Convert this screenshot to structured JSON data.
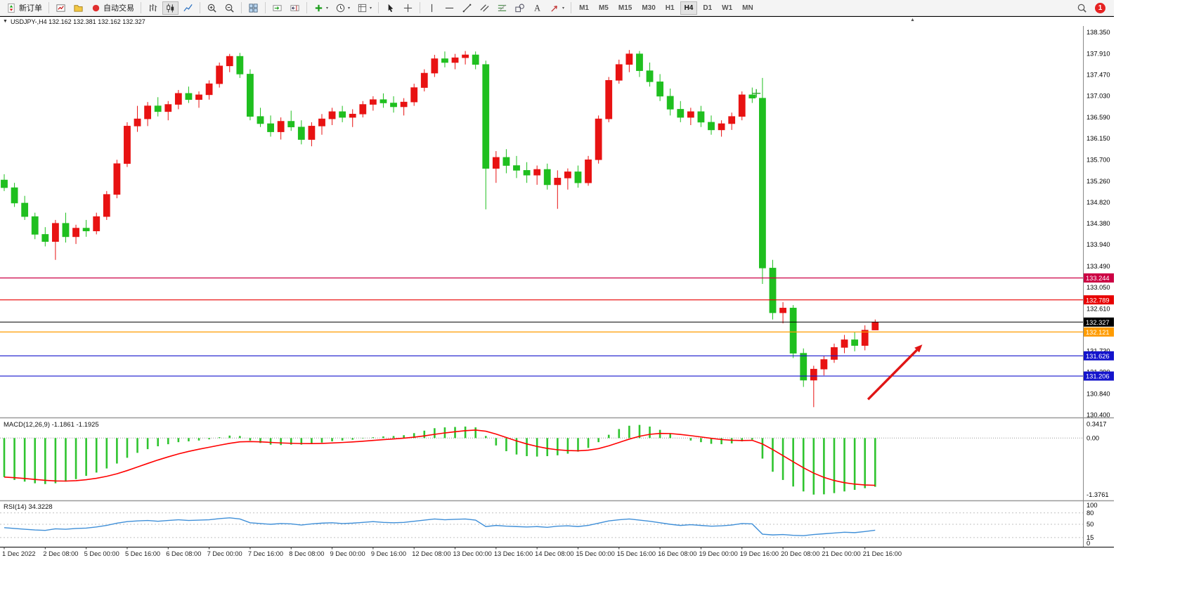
{
  "toolbar": {
    "new_order_label": "新订单",
    "autotrading_label": "自动交易",
    "buttons": [
      {
        "name": "new-order-button",
        "icon": "new-order-icon",
        "label": "新订单"
      },
      {
        "sep": true
      },
      {
        "name": "new-chart-button",
        "icon": "new-chart-icon"
      },
      {
        "name": "profiles-button",
        "icon": "profiles-icon"
      },
      {
        "name": "autotrading-button",
        "icon": "autotrading-icon",
        "label": "自动交易"
      },
      {
        "sep": true
      },
      {
        "name": "bar-chart-button",
        "icon": "bar-chart-icon"
      },
      {
        "name": "candlestick-chart-button",
        "icon": "candlestick-icon",
        "active": true
      },
      {
        "name": "line-chart-button",
        "icon": "line-chart-icon"
      },
      {
        "sep": true
      },
      {
        "name": "zoom-in-button",
        "icon": "zoom-in-icon"
      },
      {
        "name": "zoom-out-button",
        "icon": "zoom-out-icon"
      },
      {
        "sep": true
      },
      {
        "name": "tile-windows-button",
        "icon": "tile-windows-icon"
      },
      {
        "sep": true
      },
      {
        "name": "auto-scroll-button",
        "icon": "auto-scroll-icon"
      },
      {
        "name": "chart-shift-button",
        "icon": "chart-shift-icon"
      },
      {
        "sep": true
      },
      {
        "name": "indicators-button",
        "icon": "indicators-plus-icon",
        "caret": true
      },
      {
        "name": "periods-button",
        "icon": "clock-icon",
        "caret": true
      },
      {
        "name": "templates-button",
        "icon": "template-icon",
        "caret": true
      },
      {
        "sep": true
      },
      {
        "name": "cursor-button",
        "icon": "cursor-icon"
      },
      {
        "name": "crosshair-button",
        "icon": "crosshair-icon"
      },
      {
        "sep": true
      },
      {
        "name": "vertical-line-button",
        "icon": "vertical-line-icon"
      },
      {
        "name": "horizontal-line-button",
        "icon": "horizontal-line-icon"
      },
      {
        "name": "trendline-button",
        "icon": "trendline-icon"
      },
      {
        "name": "channel-button",
        "icon": "channel-icon"
      },
      {
        "name": "fibonacci-button",
        "icon": "fibonacci-icon"
      },
      {
        "name": "shapes-button",
        "icon": "shapes-icon"
      },
      {
        "name": "text-button",
        "icon": "text-icon"
      },
      {
        "name": "arrows-button",
        "icon": "arrow-style-icon",
        "caret": true
      },
      {
        "sep": true
      }
    ],
    "timeframes": [
      "M1",
      "M5",
      "M15",
      "M30",
      "H1",
      "H4",
      "D1",
      "W1",
      "MN"
    ],
    "active_timeframe": "H4",
    "notification_count": "1"
  },
  "chart": {
    "symbol": "USDJPY-",
    "period": "H4",
    "open": "132.162",
    "high": "132.381",
    "low": "132.162",
    "close": "132.327",
    "title": "USDJPY-,H4  132.162 132.381 132.162 132.327"
  },
  "chart_data": {
    "type": "candlestick",
    "symbol": "USDJPY-",
    "timeframe": "H4",
    "bull_color": "#e81212",
    "bear_color": "#1fbf1f",
    "ohlc": [
      [
        135.28,
        135.4,
        135.05,
        135.12
      ],
      [
        135.12,
        135.22,
        134.72,
        134.8
      ],
      [
        134.8,
        134.95,
        134.45,
        134.52
      ],
      [
        134.52,
        134.6,
        134.05,
        134.15
      ],
      [
        134.15,
        134.3,
        133.9,
        134.0
      ],
      [
        134.0,
        134.45,
        133.62,
        134.38
      ],
      [
        134.38,
        134.6,
        133.98,
        134.1
      ],
      [
        134.1,
        134.35,
        133.95,
        134.28
      ],
      [
        134.28,
        134.45,
        134.1,
        134.22
      ],
      [
        134.22,
        134.6,
        134.15,
        134.52
      ],
      [
        134.52,
        135.05,
        134.45,
        134.98
      ],
      [
        134.98,
        135.7,
        134.9,
        135.62
      ],
      [
        135.62,
        136.48,
        135.55,
        136.4
      ],
      [
        136.4,
        136.82,
        136.28,
        136.55
      ],
      [
        136.55,
        136.9,
        136.4,
        136.82
      ],
      [
        136.82,
        137.0,
        136.6,
        136.7
      ],
      [
        136.7,
        136.92,
        136.52,
        136.85
      ],
      [
        136.85,
        137.15,
        136.75,
        137.08
      ],
      [
        137.08,
        137.22,
        136.88,
        136.95
      ],
      [
        136.95,
        137.12,
        136.78,
        137.05
      ],
      [
        137.05,
        137.35,
        136.95,
        137.28
      ],
      [
        137.28,
        137.72,
        137.2,
        137.65
      ],
      [
        137.65,
        137.9,
        137.52,
        137.85
      ],
      [
        137.85,
        137.92,
        137.4,
        137.48
      ],
      [
        137.48,
        137.58,
        136.52,
        136.6
      ],
      [
        136.6,
        136.78,
        136.38,
        136.45
      ],
      [
        136.45,
        136.62,
        136.18,
        136.28
      ],
      [
        136.28,
        136.58,
        136.12,
        136.5
      ],
      [
        136.5,
        136.72,
        136.3,
        136.38
      ],
      [
        136.38,
        136.52,
        136.02,
        136.12
      ],
      [
        136.12,
        136.48,
        135.98,
        136.4
      ],
      [
        136.4,
        136.65,
        136.22,
        136.55
      ],
      [
        136.55,
        136.78,
        136.42,
        136.7
      ],
      [
        136.7,
        136.82,
        136.48,
        136.58
      ],
      [
        136.58,
        136.75,
        136.38,
        136.65
      ],
      [
        136.65,
        136.92,
        136.58,
        136.85
      ],
      [
        136.85,
        137.02,
        136.72,
        136.95
      ],
      [
        136.95,
        137.08,
        136.78,
        136.88
      ],
      [
        136.88,
        137.02,
        136.68,
        136.8
      ],
      [
        136.8,
        136.98,
        136.62,
        136.9
      ],
      [
        136.9,
        137.28,
        136.82,
        137.2
      ],
      [
        137.2,
        137.58,
        137.12,
        137.5
      ],
      [
        137.5,
        137.88,
        137.42,
        137.8
      ],
      [
        137.8,
        137.95,
        137.62,
        137.72
      ],
      [
        137.72,
        137.9,
        137.58,
        137.82
      ],
      [
        137.82,
        137.96,
        137.68,
        137.88
      ],
      [
        137.88,
        137.95,
        137.58,
        137.68
      ],
      [
        137.68,
        137.76,
        134.67,
        135.52
      ],
      [
        135.52,
        135.88,
        135.22,
        135.75
      ],
      [
        135.75,
        135.92,
        135.42,
        135.58
      ],
      [
        135.58,
        135.78,
        135.32,
        135.48
      ],
      [
        135.48,
        135.65,
        135.22,
        135.38
      ],
      [
        135.38,
        135.58,
        135.18,
        135.5
      ],
      [
        135.5,
        135.62,
        135.08,
        135.18
      ],
      [
        135.18,
        135.48,
        134.68,
        135.32
      ],
      [
        135.32,
        135.52,
        135.08,
        135.45
      ],
      [
        135.45,
        135.58,
        135.12,
        135.22
      ],
      [
        135.22,
        135.78,
        135.16,
        135.7
      ],
      [
        135.7,
        136.62,
        135.62,
        136.55
      ],
      [
        136.55,
        137.42,
        136.48,
        137.35
      ],
      [
        137.35,
        137.78,
        137.28,
        137.68
      ],
      [
        137.68,
        137.98,
        137.52,
        137.9
      ],
      [
        137.9,
        137.96,
        137.42,
        137.55
      ],
      [
        137.55,
        137.72,
        137.22,
        137.32
      ],
      [
        137.32,
        137.48,
        136.92,
        137.02
      ],
      [
        137.02,
        137.18,
        136.62,
        136.75
      ],
      [
        136.75,
        136.92,
        136.48,
        136.58
      ],
      [
        136.58,
        136.78,
        136.42,
        136.7
      ],
      [
        136.7,
        136.82,
        136.38,
        136.48
      ],
      [
        136.48,
        136.62,
        136.22,
        136.32
      ],
      [
        136.32,
        136.52,
        136.18,
        136.45
      ],
      [
        136.45,
        136.68,
        136.32,
        136.6
      ],
      [
        136.6,
        137.12,
        136.52,
        137.05
      ],
      [
        137.05,
        137.2,
        136.88,
        136.98
      ],
      [
        136.98,
        137.4,
        133.12,
        133.45
      ],
      [
        133.45,
        133.62,
        132.38,
        132.52
      ],
      [
        132.52,
        132.74,
        132.3,
        132.62
      ],
      [
        132.62,
        132.68,
        131.58,
        131.68
      ],
      [
        131.68,
        131.78,
        130.98,
        131.12
      ],
      [
        131.12,
        131.42,
        130.56,
        131.35
      ],
      [
        131.35,
        131.62,
        131.22,
        131.55
      ],
      [
        131.55,
        131.88,
        131.48,
        131.8
      ],
      [
        131.8,
        132.06,
        131.68,
        131.96
      ],
      [
        131.96,
        132.12,
        131.72,
        131.84
      ],
      [
        131.84,
        132.26,
        131.74,
        132.16
      ],
      [
        132.162,
        132.381,
        132.162,
        132.327
      ]
    ],
    "time_labels": [
      "1 Dec 2022",
      "2 Dec 08:00",
      "5 Dec 00:00",
      "5 Dec 16:00",
      "6 Dec 08:00",
      "7 Dec 00:00",
      "7 Dec 16:00",
      "8 Dec 08:00",
      "9 Dec 00:00",
      "9 Dec 16:00",
      "12 Dec 08:00",
      "13 Dec 00:00",
      "13 Dec 16:00",
      "14 Dec 08:00",
      "15 Dec 00:00",
      "15 Dec 16:00",
      "16 Dec 08:00",
      "19 Dec 00:00",
      "19 Dec 16:00",
      "20 Dec 08:00",
      "21 Dec 00:00",
      "21 Dec 16:00"
    ],
    "time_label_first_bar": 0,
    "time_label_step": 4,
    "price_axis": {
      "min": 130.36,
      "max": 138.45,
      "ticks": [
        "138.350",
        "137.910",
        "137.470",
        "137.030",
        "136.590",
        "136.150",
        "135.700",
        "135.260",
        "134.820",
        "134.380",
        "133.940",
        "133.490",
        "133.050",
        "132.610",
        "132.170",
        "131.730",
        "131.290",
        "130.840",
        "130.400"
      ]
    },
    "levels": [
      {
        "price": 133.244,
        "label": "133.244",
        "color": "#cc0044"
      },
      {
        "price": 132.789,
        "label": "132.789",
        "color": "#e80000"
      },
      {
        "price": 132.327,
        "label": "132.327",
        "color": "#000000",
        "role": "bid-price"
      },
      {
        "price": 132.121,
        "label": "132.121",
        "color": "#ff9c00"
      },
      {
        "price": 131.626,
        "label": "131.626",
        "color": "#1414cc"
      },
      {
        "price": 131.206,
        "label": "131.206",
        "color": "#1414cc"
      }
    ],
    "annotations": {
      "arrow": {
        "from_bar": 84.3,
        "from_price": 130.72,
        "to_bar": 89.6,
        "to_price": 131.86,
        "color": "#e01515"
      },
      "cross": {
        "bar": 73.4,
        "price": 137.08,
        "color": "#2aa82a"
      }
    },
    "indicators": [
      {
        "name": "MACD",
        "label": "MACD(12,26,9) -1.1861 -1.1925",
        "main_value": "-1.1861",
        "signal_value": "-1.1925",
        "axis_ticks": [
          "0.3417",
          "0.00",
          "-1.3761"
        ],
        "scale_max": 0.45,
        "scale_min": -1.5,
        "hist_color": "#2fc42f",
        "signal_color": "#ff0000",
        "histogram": [
          -0.95,
          -1.02,
          -1.06,
          -1.1,
          -1.12,
          -1.1,
          -1.06,
          -1.0,
          -0.92,
          -0.84,
          -0.74,
          -0.62,
          -0.48,
          -0.36,
          -0.27,
          -0.2,
          -0.15,
          -0.1,
          -0.08,
          -0.06,
          -0.03,
          0.02,
          0.06,
          0.05,
          -0.06,
          -0.12,
          -0.16,
          -0.17,
          -0.16,
          -0.16,
          -0.14,
          -0.11,
          -0.08,
          -0.06,
          -0.04,
          -0.01,
          0.02,
          0.04,
          0.05,
          0.07,
          0.12,
          0.18,
          0.24,
          0.26,
          0.27,
          0.28,
          0.26,
          0.05,
          -0.18,
          -0.32,
          -0.4,
          -0.44,
          -0.45,
          -0.44,
          -0.42,
          -0.38,
          -0.33,
          -0.24,
          -0.1,
          0.08,
          0.22,
          0.3,
          0.32,
          0.28,
          0.2,
          0.1,
          0.0,
          -0.06,
          -0.1,
          -0.14,
          -0.15,
          -0.13,
          -0.08,
          -0.04,
          -0.5,
          -0.82,
          -1.02,
          -1.18,
          -1.3,
          -1.3761,
          -1.37,
          -1.34,
          -1.3,
          -1.26,
          -1.22,
          -1.1861
        ]
      },
      {
        "name": "RSI",
        "label": "RSI(14) 34.3228",
        "current_value": "34.3228",
        "axis_ticks": [
          100,
          80,
          50,
          15,
          0
        ],
        "level_lines": [
          80,
          50,
          15
        ],
        "color": "#3f8fd8",
        "values": [
          41,
          39,
          37,
          35,
          34,
          38,
          37,
          39,
          40,
          43,
          47,
          53,
          57,
          59,
          60,
          58,
          60,
          62,
          60,
          61,
          62,
          65,
          67,
          64,
          54,
          52,
          50,
          52,
          51,
          48,
          51,
          53,
          54,
          52,
          53,
          55,
          57,
          55,
          54,
          55,
          58,
          61,
          64,
          62,
          63,
          64,
          61,
          44,
          47,
          45,
          44,
          43,
          44,
          42,
          45,
          46,
          44,
          47,
          53,
          59,
          62,
          64,
          61,
          58,
          54,
          50,
          47,
          49,
          47,
          45,
          46,
          48,
          52,
          51,
          24,
          22,
          23,
          21,
          20,
          23,
          25,
          27,
          29,
          28,
          31,
          34.32
        ]
      }
    ]
  }
}
